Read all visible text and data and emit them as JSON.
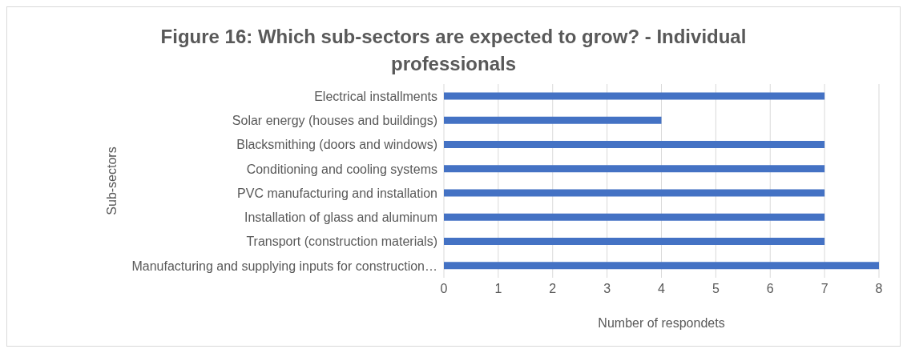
{
  "chart_data": {
    "type": "bar",
    "orientation": "horizontal",
    "title": "Figure 16: Which sub-sectors are expected to grow? - Individual professionals",
    "xlabel": "Number of respondets",
    "ylabel": "Sub-sectors",
    "categories": [
      "Electrical installments",
      "Solar energy (houses and buildings)",
      "Blacksmithing (doors and windows)",
      "Conditioning and cooling systems",
      "PVC manufacturing and installation",
      "Installation of glass and aluminum",
      "Transport (construction materials)",
      "Manufacturing and supplying inputs for construction…"
    ],
    "values": [
      7,
      4,
      7,
      7,
      7,
      7,
      7,
      8
    ],
    "color": "#4472c4",
    "xlim": [
      0,
      8
    ],
    "xticks": [
      0,
      1,
      2,
      3,
      4,
      5,
      6,
      7,
      8
    ],
    "grid": "x"
  }
}
